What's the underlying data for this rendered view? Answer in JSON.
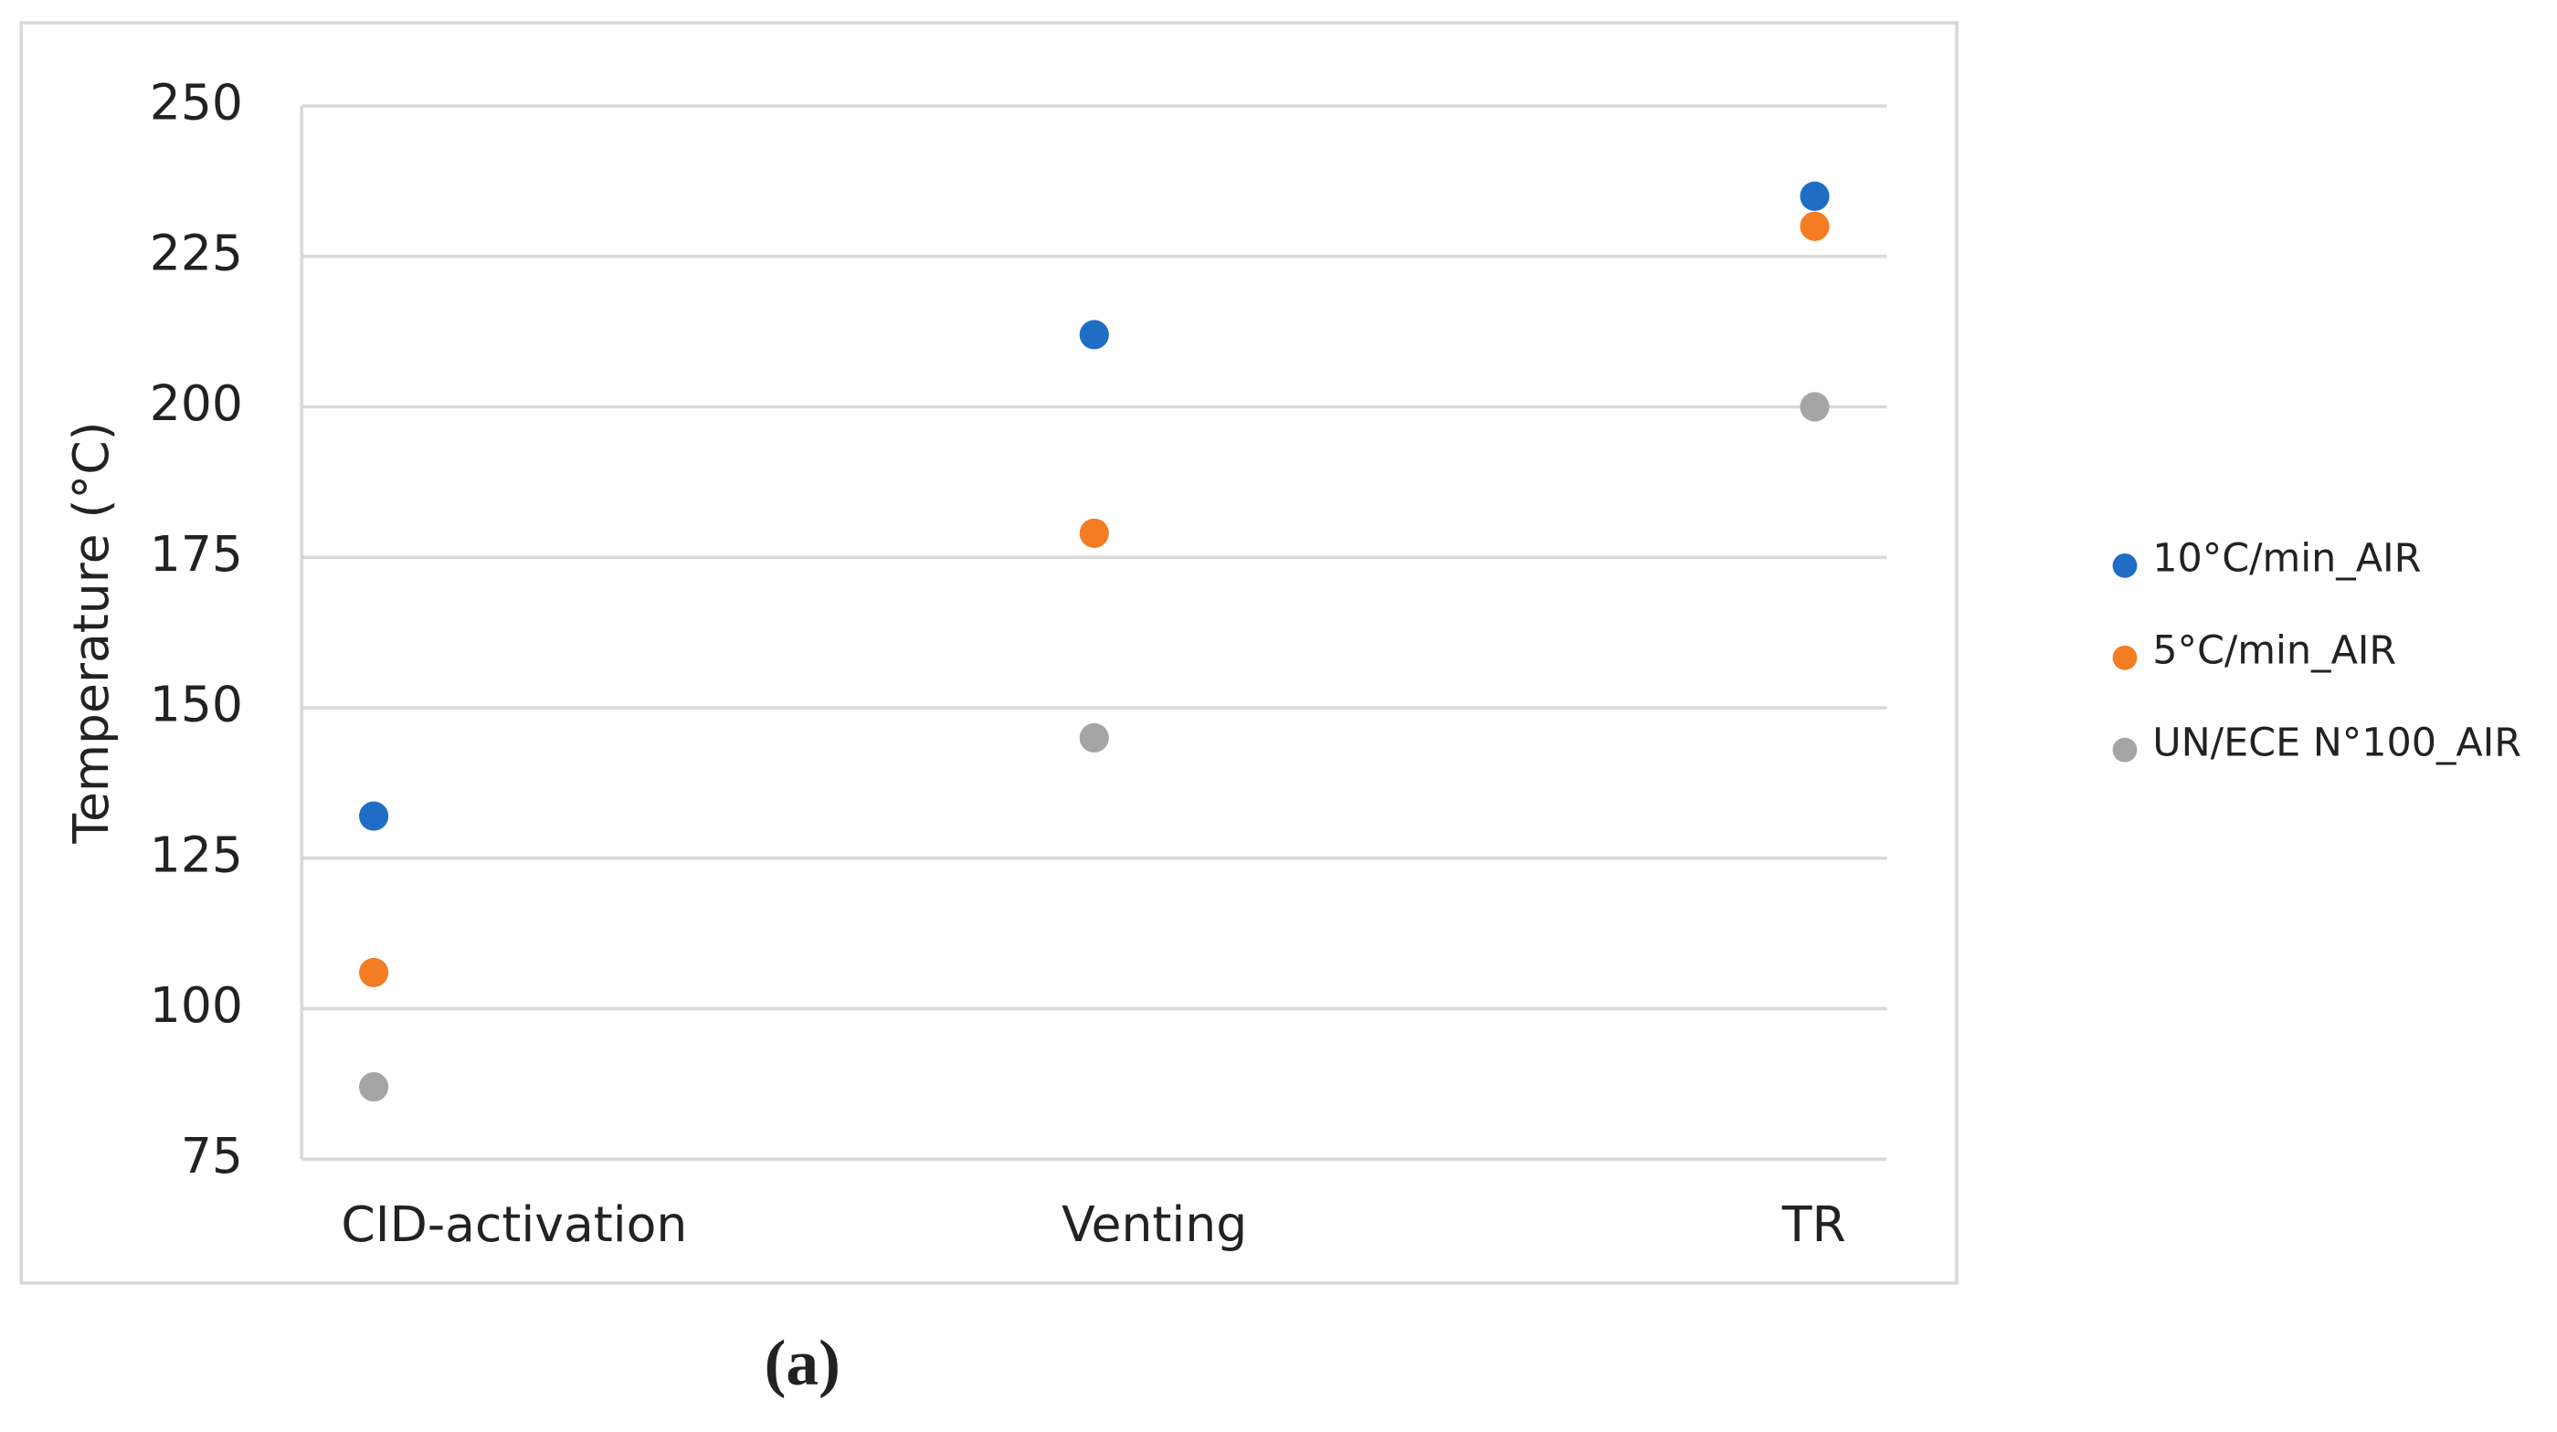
{
  "chart_data": {
    "type": "dot",
    "y_label": "Temperature (°C)",
    "caption": "(a)",
    "categories": [
      "CID-activation",
      "Venting",
      "TR"
    ],
    "series": [
      {
        "name": "10°C/min_AIR",
        "color": "#1f6dc4",
        "values": [
          132,
          212,
          235
        ]
      },
      {
        "name": "5°C/min_AIR",
        "color": "#f47c22",
        "values": [
          106,
          179,
          230
        ]
      },
      {
        "name": "UN/ECE N°100_AIR",
        "color": "#a5a5a5",
        "values": [
          87,
          145,
          200
        ]
      }
    ],
    "ylim": [
      75,
      250
    ],
    "yticks": [
      75,
      100,
      125,
      150,
      175,
      200,
      225,
      250
    ],
    "grid": true,
    "legend": "right"
  }
}
